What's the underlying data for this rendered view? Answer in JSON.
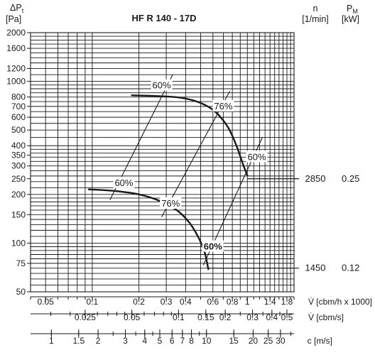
{
  "chart_data": {
    "type": "line",
    "title": "HF R 140 - 17D",
    "ylabel_symbol": "ΔP",
    "ylabel_subscript": "t",
    "ylabel_unit": "[Pa]",
    "n_label": "n",
    "n_unit": "[1/min]",
    "p_label": "P",
    "p_subscript": "M",
    "p_unit": "[kW]",
    "y_scale": "log",
    "ylim": [
      50,
      2000
    ],
    "y_ticks": [
      50,
      75,
      100,
      150,
      200,
      250,
      300,
      350,
      400,
      500,
      600,
      700,
      800,
      1000,
      1200,
      1600,
      2000
    ],
    "y_tick_labels": [
      "50",
      "75",
      "100",
      "150",
      "200",
      "250",
      "300",
      "350",
      "400",
      "500",
      "600",
      "700",
      "800",
      "1000",
      "1200",
      "1600",
      "2000"
    ],
    "x_scale": "log",
    "xlim": [
      0.04,
      2.0
    ],
    "grid": true,
    "x_axes": [
      {
        "label": "V̇ [cbm/h x 1000]",
        "ticks": [
          0.05,
          0.1,
          0.2,
          0.3,
          0.4,
          0.6,
          0.8,
          1,
          1.4,
          1.8
        ],
        "tick_labels": [
          "0.05",
          "0.1",
          "0.2",
          "0.3",
          "0.4",
          "0.6",
          "0.8",
          "1",
          "1.4",
          "1.8"
        ]
      },
      {
        "label": "V̇ [cbm/s]",
        "ticks": [
          0.025,
          0.05,
          0.1,
          0.15,
          0.2,
          0.3,
          0.4,
          0.5
        ],
        "tick_labels": [
          "0.025",
          "0.05",
          "0.1",
          "0.15",
          "0.2",
          "0.3",
          "0.4",
          "0.5"
        ]
      },
      {
        "label": "c [m/s]",
        "ticks": [
          1,
          1.5,
          2,
          3,
          4,
          5,
          6,
          7,
          8,
          10,
          15,
          20,
          25,
          30
        ],
        "tick_labels": [
          "1",
          "1.5",
          "2",
          "3",
          "4",
          "5",
          "6",
          "7",
          "8",
          "10",
          "15",
          "20",
          "25",
          "30"
        ]
      }
    ],
    "series": [
      {
        "speed": "2850",
        "power": "0.25",
        "points": [
          [
            0.18,
            820
          ],
          [
            0.27,
            810
          ],
          [
            0.38,
            790
          ],
          [
            0.5,
            735
          ],
          [
            0.62,
            650
          ],
          [
            0.75,
            520
          ],
          [
            0.85,
            400
          ],
          [
            0.94,
            305
          ],
          [
            1.0,
            262
          ]
        ]
      },
      {
        "speed": "1450",
        "power": "0.12",
        "points": [
          [
            0.095,
            215
          ],
          [
            0.14,
            210
          ],
          [
            0.2,
            200
          ],
          [
            0.27,
            183
          ],
          [
            0.35,
            160
          ],
          [
            0.42,
            135
          ],
          [
            0.48,
            110
          ],
          [
            0.53,
            88
          ],
          [
            0.56,
            69
          ]
        ]
      }
    ],
    "efficiency_lines": [
      {
        "label": "60%",
        "from": [
          0.13,
          185
        ],
        "to": [
          0.33,
          1100
        ],
        "label_at": [
          0.28,
          940
        ],
        "bold": false
      },
      {
        "label": "76%",
        "from": [
          0.28,
          145
        ],
        "to": [
          0.77,
          870
        ],
        "label_at": [
          0.7,
          700
        ],
        "bold": false
      },
      {
        "label": "60%",
        "from": [
          0.52,
          73
        ],
        "to": [
          1.25,
          450
        ],
        "label_at": [
          1.15,
          340
        ],
        "bold": false
      },
      {
        "label": "60%",
        "from": [],
        "to": [],
        "label_at": [
          0.16,
          235
        ],
        "bold": false
      },
      {
        "label": "76%",
        "from": [],
        "to": [],
        "label_at": [
          0.32,
          175
        ],
        "bold": false
      },
      {
        "label": "60%",
        "from": [],
        "to": [],
        "label_at": [
          0.6,
          95
        ],
        "bold": true
      }
    ]
  }
}
